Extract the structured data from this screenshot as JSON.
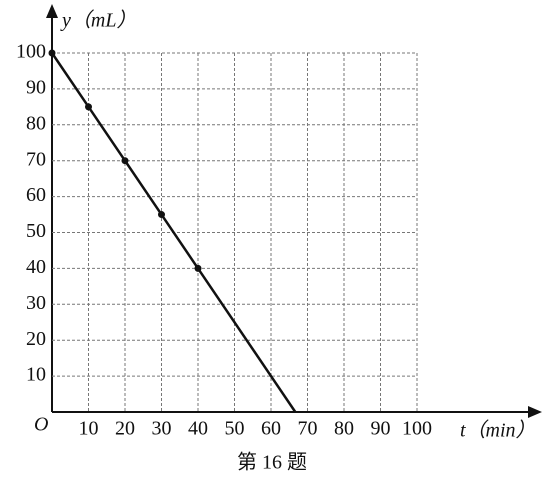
{
  "chart_data": {
    "type": "line",
    "x_label": "t（min）",
    "y_label": "y（mL）",
    "origin_label": "O",
    "caption": "第 16 题",
    "x": [
      0,
      10,
      20,
      30,
      40
    ],
    "series": [
      {
        "color": "#111111",
        "values": [
          100,
          85,
          70,
          55,
          40
        ]
      }
    ],
    "xlim": [
      0,
      100
    ],
    "ylim": [
      0,
      100
    ],
    "xticks": [
      10,
      20,
      30,
      40,
      50,
      60,
      70,
      80,
      90,
      100
    ],
    "yticks": [
      10,
      20,
      30,
      40,
      50,
      60,
      70,
      80,
      90,
      100
    ],
    "grid": true
  }
}
